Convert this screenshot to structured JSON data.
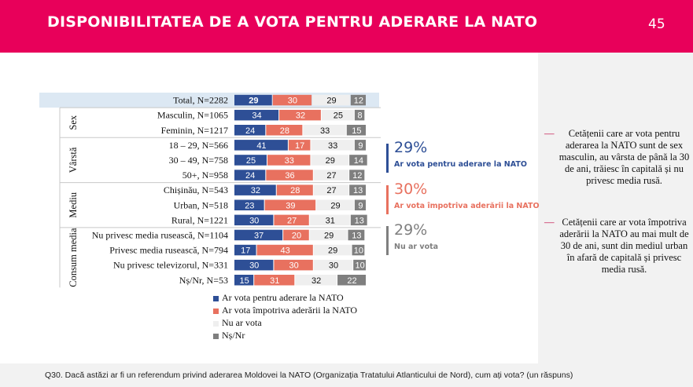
{
  "header": {
    "title": "DISPONIBILITATEA DE A VOTA PENTRU ADERARE LA NATO",
    "page_number": "45"
  },
  "footer": {
    "question": "Q30. Dacă astăzi ar fi un referendum privind aderarea Moldovei la NATO (Organizația Tratatului Atlanticului de Nord), cum ați vota? (un răspuns)"
  },
  "colors": {
    "brand": "#e8005a",
    "for": "#2e4f96",
    "against": "#e8715f",
    "neutral": "#efefef",
    "dk": "#7f7f7f",
    "highlight": "#dce8f3"
  },
  "chart_data": {
    "type": "bar",
    "stacked": true,
    "orientation": "horizontal",
    "series": [
      {
        "name": "Ar vota pentru aderare la NATO",
        "color": "#2e4f96",
        "values": [
          29,
          34,
          24,
          41,
          25,
          24,
          32,
          23,
          30,
          37,
          17,
          30,
          15
        ]
      },
      {
        "name": "Ar vota împotriva aderării la NATO",
        "color": "#e8715f",
        "values": [
          30,
          32,
          28,
          17,
          33,
          36,
          28,
          39,
          27,
          20,
          43,
          30,
          31
        ]
      },
      {
        "name": "Nu ar vota",
        "color": "#efefef",
        "values": [
          29,
          25,
          33,
          33,
          29,
          27,
          27,
          29,
          31,
          29,
          29,
          30,
          32
        ]
      },
      {
        "name": "Nș/Nr",
        "color": "#7f7f7f",
        "values": [
          12,
          8,
          15,
          9,
          14,
          12,
          13,
          9,
          13,
          13,
          10,
          10,
          22
        ]
      }
    ],
    "categories": [
      "Total, N=2282",
      "Masculin, N=1065",
      "Feminin, N=1217",
      "18 – 29, N=566",
      "30 – 49, N=758",
      "50+, N=958",
      "Chișinău, N=543",
      "Urban, N=518",
      "Rural, N=1221",
      "Nu privesc media rusească, N=1104",
      "Privesc media rusească, N=794",
      "Nu privesc televizorul, N=331",
      "Nș/Nr, N=53"
    ],
    "groups": [
      {
        "label": "Sex",
        "rows": [
          1,
          2
        ]
      },
      {
        "label": "Vârstă",
        "rows": [
          3,
          5
        ]
      },
      {
        "label": "Mediu",
        "rows": [
          6,
          8
        ]
      },
      {
        "label": "Consum media",
        "rows": [
          9,
          12
        ]
      }
    ],
    "highlight_row": 0
  },
  "legend": [
    "Ar vota pentru aderare la NATO",
    "Ar vota împotriva aderării la NATO",
    "Nu ar vota",
    "Nș/Nr"
  ],
  "summary": [
    {
      "pct": "29%",
      "label": "Ar vota pentru aderare la NATO",
      "color": "#2e4f96"
    },
    {
      "pct": "30%",
      "label": "Ar vota împotriva aderării la NATO",
      "color": "#e8715f"
    },
    {
      "pct": "29%",
      "label": "Nu ar vota",
      "color": "#7f7f7f"
    }
  ],
  "notes": [
    "Cetățenii care ar vota pentru aderarea la NATO sunt de sex masculin, au vârsta de până la 30 de ani, trăiesc în capitală și nu privesc media rusă.",
    "Cetățenii care ar vota împotriva aderării la NATO au mai mult de 30 de ani, sunt din mediul urban în afară de capitală și privesc media rusă."
  ]
}
